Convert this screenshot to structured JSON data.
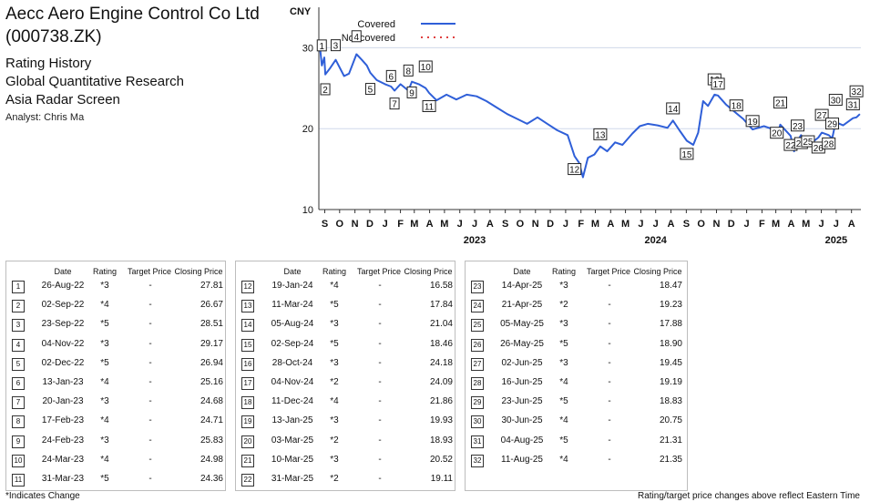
{
  "header": {
    "company_line1": "Aecc Aero Engine Control Co Ltd",
    "company_line2": "(000738.ZK)",
    "line1": "Rating History",
    "line2": "Global Quantitative Research",
    "line3": "Asia Radar Screen",
    "analyst": "Analyst: Chris Ma"
  },
  "chart_data": {
    "type": "line",
    "title": "",
    "ylabel": "CNY",
    "ylim": [
      10,
      35
    ],
    "y_ticks": [
      10,
      20,
      30
    ],
    "grid": true,
    "legend_position": "top-left",
    "legend": [
      {
        "label": "Covered",
        "color": "#2f5fd8",
        "style": "solid"
      },
      {
        "label": "Not covered",
        "color": "#e04040",
        "style": "dotted"
      }
    ],
    "x_range": [
      "2022-08-20",
      "2025-08-20"
    ],
    "month_ticks": [
      {
        "date": "2022-09-01",
        "label": "S"
      },
      {
        "date": "2022-10-01",
        "label": "O"
      },
      {
        "date": "2022-11-01",
        "label": "N"
      },
      {
        "date": "2022-12-01",
        "label": "D"
      },
      {
        "date": "2023-01-01",
        "label": "J"
      },
      {
        "date": "2023-02-01",
        "label": "F"
      },
      {
        "date": "2023-03-01",
        "label": "M"
      },
      {
        "date": "2023-04-01",
        "label": "A"
      },
      {
        "date": "2023-05-01",
        "label": "M"
      },
      {
        "date": "2023-06-01",
        "label": "J"
      },
      {
        "date": "2023-07-01",
        "label": "J"
      },
      {
        "date": "2023-08-01",
        "label": "A"
      },
      {
        "date": "2023-09-01",
        "label": "S"
      },
      {
        "date": "2023-10-01",
        "label": "O"
      },
      {
        "date": "2023-11-01",
        "label": "N"
      },
      {
        "date": "2023-12-01",
        "label": "D"
      },
      {
        "date": "2024-01-01",
        "label": "J"
      },
      {
        "date": "2024-02-01",
        "label": "F"
      },
      {
        "date": "2024-03-01",
        "label": "M"
      },
      {
        "date": "2024-04-01",
        "label": "A"
      },
      {
        "date": "2024-05-01",
        "label": "M"
      },
      {
        "date": "2024-06-01",
        "label": "J"
      },
      {
        "date": "2024-07-01",
        "label": "J"
      },
      {
        "date": "2024-08-01",
        "label": "A"
      },
      {
        "date": "2024-09-01",
        "label": "S"
      },
      {
        "date": "2024-10-01",
        "label": "O"
      },
      {
        "date": "2024-11-01",
        "label": "N"
      },
      {
        "date": "2024-12-01",
        "label": "D"
      },
      {
        "date": "2025-01-01",
        "label": "J"
      },
      {
        "date": "2025-02-01",
        "label": "F"
      },
      {
        "date": "2025-03-01",
        "label": "M"
      },
      {
        "date": "2025-04-01",
        "label": "A"
      },
      {
        "date": "2025-05-01",
        "label": "M"
      },
      {
        "date": "2025-06-01",
        "label": "J"
      },
      {
        "date": "2025-07-01",
        "label": "J"
      },
      {
        "date": "2025-08-01",
        "label": "A"
      }
    ],
    "year_labels": [
      {
        "date": "2023-07-01",
        "label": "2023"
      },
      {
        "date": "2024-07-01",
        "label": "2024"
      },
      {
        "date": "2025-07-01",
        "label": "2025"
      }
    ],
    "series": [
      {
        "name": "Covered",
        "color": "#2f5fd8",
        "points": [
          [
            "2022-08-22",
            30.2
          ],
          [
            "2022-08-26",
            27.8
          ],
          [
            "2022-08-31",
            28.8
          ],
          [
            "2022-09-02",
            26.7
          ],
          [
            "2022-09-12",
            27.5
          ],
          [
            "2022-09-23",
            28.5
          ],
          [
            "2022-10-10",
            26.5
          ],
          [
            "2022-10-20",
            26.8
          ],
          [
            "2022-11-04",
            29.2
          ],
          [
            "2022-11-15",
            28.5
          ],
          [
            "2022-11-25",
            27.8
          ],
          [
            "2022-12-02",
            26.9
          ],
          [
            "2022-12-15",
            26.0
          ],
          [
            "2023-01-01",
            25.5
          ],
          [
            "2023-01-13",
            25.2
          ],
          [
            "2023-01-20",
            24.7
          ],
          [
            "2023-02-01",
            25.5
          ],
          [
            "2023-02-17",
            24.7
          ],
          [
            "2023-02-24",
            25.8
          ],
          [
            "2023-03-10",
            25.5
          ],
          [
            "2023-03-24",
            25.0
          ],
          [
            "2023-03-31",
            24.4
          ],
          [
            "2023-04-15",
            23.5
          ],
          [
            "2023-05-05",
            24.2
          ],
          [
            "2023-05-25",
            23.6
          ],
          [
            "2023-06-15",
            24.2
          ],
          [
            "2023-07-05",
            24.0
          ],
          [
            "2023-07-25",
            23.4
          ],
          [
            "2023-08-15",
            22.6
          ],
          [
            "2023-09-05",
            21.8
          ],
          [
            "2023-09-25",
            21.2
          ],
          [
            "2023-10-15",
            20.6
          ],
          [
            "2023-11-05",
            21.4
          ],
          [
            "2023-11-25",
            20.6
          ],
          [
            "2023-12-15",
            19.8
          ],
          [
            "2024-01-05",
            19.2
          ],
          [
            "2024-01-19",
            16.6
          ],
          [
            "2024-01-28",
            15.8
          ],
          [
            "2024-02-05",
            14.0
          ],
          [
            "2024-02-15",
            16.4
          ],
          [
            "2024-02-28",
            16.8
          ],
          [
            "2024-03-11",
            17.8
          ],
          [
            "2024-03-25",
            17.2
          ],
          [
            "2024-04-10",
            18.3
          ],
          [
            "2024-04-25",
            18.0
          ],
          [
            "2024-05-15",
            19.4
          ],
          [
            "2024-05-30",
            20.3
          ],
          [
            "2024-06-15",
            20.6
          ],
          [
            "2024-07-05",
            20.4
          ],
          [
            "2024-07-25",
            20.1
          ],
          [
            "2024-08-05",
            21.0
          ],
          [
            "2024-08-18",
            19.8
          ],
          [
            "2024-09-02",
            18.5
          ],
          [
            "2024-09-15",
            18.0
          ],
          [
            "2024-09-25",
            19.5
          ],
          [
            "2024-10-05",
            23.4
          ],
          [
            "2024-10-15",
            22.8
          ],
          [
            "2024-10-28",
            24.2
          ],
          [
            "2024-11-04",
            24.1
          ],
          [
            "2024-11-20",
            23.0
          ],
          [
            "2024-12-11",
            21.9
          ],
          [
            "2024-12-25",
            21.2
          ],
          [
            "2025-01-13",
            19.9
          ],
          [
            "2025-02-05",
            20.3
          ],
          [
            "2025-02-20",
            20.0
          ],
          [
            "2025-03-03",
            18.9
          ],
          [
            "2025-03-10",
            20.5
          ],
          [
            "2025-03-31",
            19.1
          ],
          [
            "2025-04-07",
            17.2
          ],
          [
            "2025-04-14",
            18.5
          ],
          [
            "2025-04-21",
            19.2
          ],
          [
            "2025-05-05",
            17.9
          ],
          [
            "2025-05-26",
            18.9
          ],
          [
            "2025-06-02",
            19.5
          ],
          [
            "2025-06-16",
            19.2
          ],
          [
            "2025-06-23",
            18.8
          ],
          [
            "2025-06-30",
            20.8
          ],
          [
            "2025-07-15",
            20.4
          ],
          [
            "2025-08-04",
            21.3
          ],
          [
            "2025-08-11",
            21.4
          ],
          [
            "2025-08-18",
            21.8
          ]
        ]
      }
    ]
  },
  "ratings": [
    {
      "n": "1",
      "date": "26-Aug-22",
      "rating": "*3",
      "target": "-",
      "close": "27.81"
    },
    {
      "n": "2",
      "date": "02-Sep-22",
      "rating": "*4",
      "target": "-",
      "close": "26.67"
    },
    {
      "n": "3",
      "date": "23-Sep-22",
      "rating": "*5",
      "target": "-",
      "close": "28.51"
    },
    {
      "n": "4",
      "date": "04-Nov-22",
      "rating": "*3",
      "target": "-",
      "close": "29.17"
    },
    {
      "n": "5",
      "date": "02-Dec-22",
      "rating": "*5",
      "target": "-",
      "close": "26.94"
    },
    {
      "n": "6",
      "date": "13-Jan-23",
      "rating": "*4",
      "target": "-",
      "close": "25.16"
    },
    {
      "n": "7",
      "date": "20-Jan-23",
      "rating": "*3",
      "target": "-",
      "close": "24.68"
    },
    {
      "n": "8",
      "date": "17-Feb-23",
      "rating": "*4",
      "target": "-",
      "close": "24.71"
    },
    {
      "n": "9",
      "date": "24-Feb-23",
      "rating": "*3",
      "target": "-",
      "close": "25.83"
    },
    {
      "n": "10",
      "date": "24-Mar-23",
      "rating": "*4",
      "target": "-",
      "close": "24.98"
    },
    {
      "n": "11",
      "date": "31-Mar-23",
      "rating": "*5",
      "target": "-",
      "close": "24.36"
    },
    {
      "n": "12",
      "date": "19-Jan-24",
      "rating": "*4",
      "target": "-",
      "close": "16.58"
    },
    {
      "n": "13",
      "date": "11-Mar-24",
      "rating": "*5",
      "target": "-",
      "close": "17.84"
    },
    {
      "n": "14",
      "date": "05-Aug-24",
      "rating": "*3",
      "target": "-",
      "close": "21.04"
    },
    {
      "n": "15",
      "date": "02-Sep-24",
      "rating": "*5",
      "target": "-",
      "close": "18.46"
    },
    {
      "n": "16",
      "date": "28-Oct-24",
      "rating": "*3",
      "target": "-",
      "close": "24.18"
    },
    {
      "n": "17",
      "date": "04-Nov-24",
      "rating": "*2",
      "target": "-",
      "close": "24.09"
    },
    {
      "n": "18",
      "date": "11-Dec-24",
      "rating": "*4",
      "target": "-",
      "close": "21.86"
    },
    {
      "n": "19",
      "date": "13-Jan-25",
      "rating": "*3",
      "target": "-",
      "close": "19.93"
    },
    {
      "n": "20",
      "date": "03-Mar-25",
      "rating": "*2",
      "target": "-",
      "close": "18.93"
    },
    {
      "n": "21",
      "date": "10-Mar-25",
      "rating": "*3",
      "target": "-",
      "close": "20.52"
    },
    {
      "n": "22",
      "date": "31-Mar-25",
      "rating": "*2",
      "target": "-",
      "close": "19.11"
    },
    {
      "n": "23",
      "date": "14-Apr-25",
      "rating": "*3",
      "target": "-",
      "close": "18.47"
    },
    {
      "n": "24",
      "date": "21-Apr-25",
      "rating": "*2",
      "target": "-",
      "close": "19.23"
    },
    {
      "n": "25",
      "date": "05-May-25",
      "rating": "*3",
      "target": "-",
      "close": "17.88"
    },
    {
      "n": "26",
      "date": "26-May-25",
      "rating": "*5",
      "target": "-",
      "close": "18.90"
    },
    {
      "n": "27",
      "date": "02-Jun-25",
      "rating": "*3",
      "target": "-",
      "close": "19.45"
    },
    {
      "n": "28",
      "date": "16-Jun-25",
      "rating": "*4",
      "target": "-",
      "close": "19.19"
    },
    {
      "n": "29",
      "date": "23-Jun-25",
      "rating": "*5",
      "target": "-",
      "close": "18.83"
    },
    {
      "n": "30",
      "date": "30-Jun-25",
      "rating": "*4",
      "target": "-",
      "close": "20.75"
    },
    {
      "n": "31",
      "date": "04-Aug-25",
      "rating": "*5",
      "target": "-",
      "close": "21.31"
    },
    {
      "n": "32",
      "date": "11-Aug-25",
      "rating": "*4",
      "target": "-",
      "close": "21.35"
    }
  ],
  "table_headers": {
    "date": "Date",
    "rating": "Rating",
    "target": "Target Price",
    "close": "Closing Price"
  },
  "footer": {
    "left": "*Indicates Change",
    "right": "Rating/target price changes above reflect Eastern Time"
  }
}
